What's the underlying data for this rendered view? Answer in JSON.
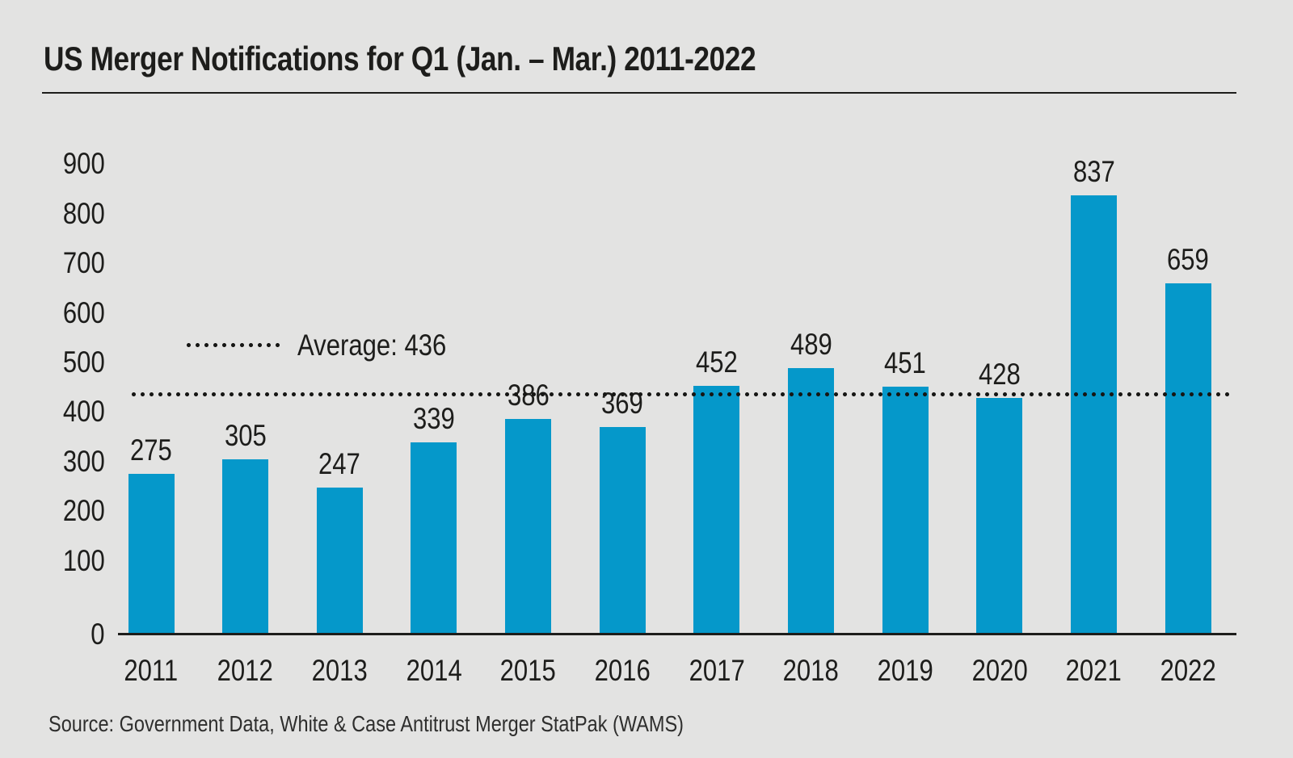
{
  "page": {
    "title": "US Merger Notifications for Q1 (Jan. – Mar.) 2011-2022",
    "source": "Source: Government Data, White & Case Antitrust Merger StatPak (WAMS)"
  },
  "legend": {
    "average_label": "Average: 436"
  },
  "chart_data": {
    "type": "bar",
    "title": "US Merger Notifications for Q1 (Jan. – Mar.) 2011-2022",
    "categories": [
      "2011",
      "2012",
      "2013",
      "2014",
      "2015",
      "2016",
      "2017",
      "2018",
      "2019",
      "2020",
      "2021",
      "2022"
    ],
    "values": [
      275,
      305,
      247,
      339,
      386,
      369,
      452,
      489,
      451,
      428,
      837,
      659
    ],
    "average": {
      "value": 436,
      "label": "Average: 436",
      "line_style": "dotted"
    },
    "yticks": [
      0,
      100,
      200,
      300,
      400,
      500,
      600,
      700,
      800,
      900
    ],
    "ylim": [
      0,
      900
    ],
    "xlabel": "",
    "ylabel": "",
    "grid": false,
    "legend_position": "inside-upper-left",
    "bar_color": "#0598CA",
    "text_color": "#1d1d1b",
    "background_color": "#e3e3e2",
    "source": "Source: Government Data, White & Case Antitrust Merger StatPak (WAMS)"
  }
}
